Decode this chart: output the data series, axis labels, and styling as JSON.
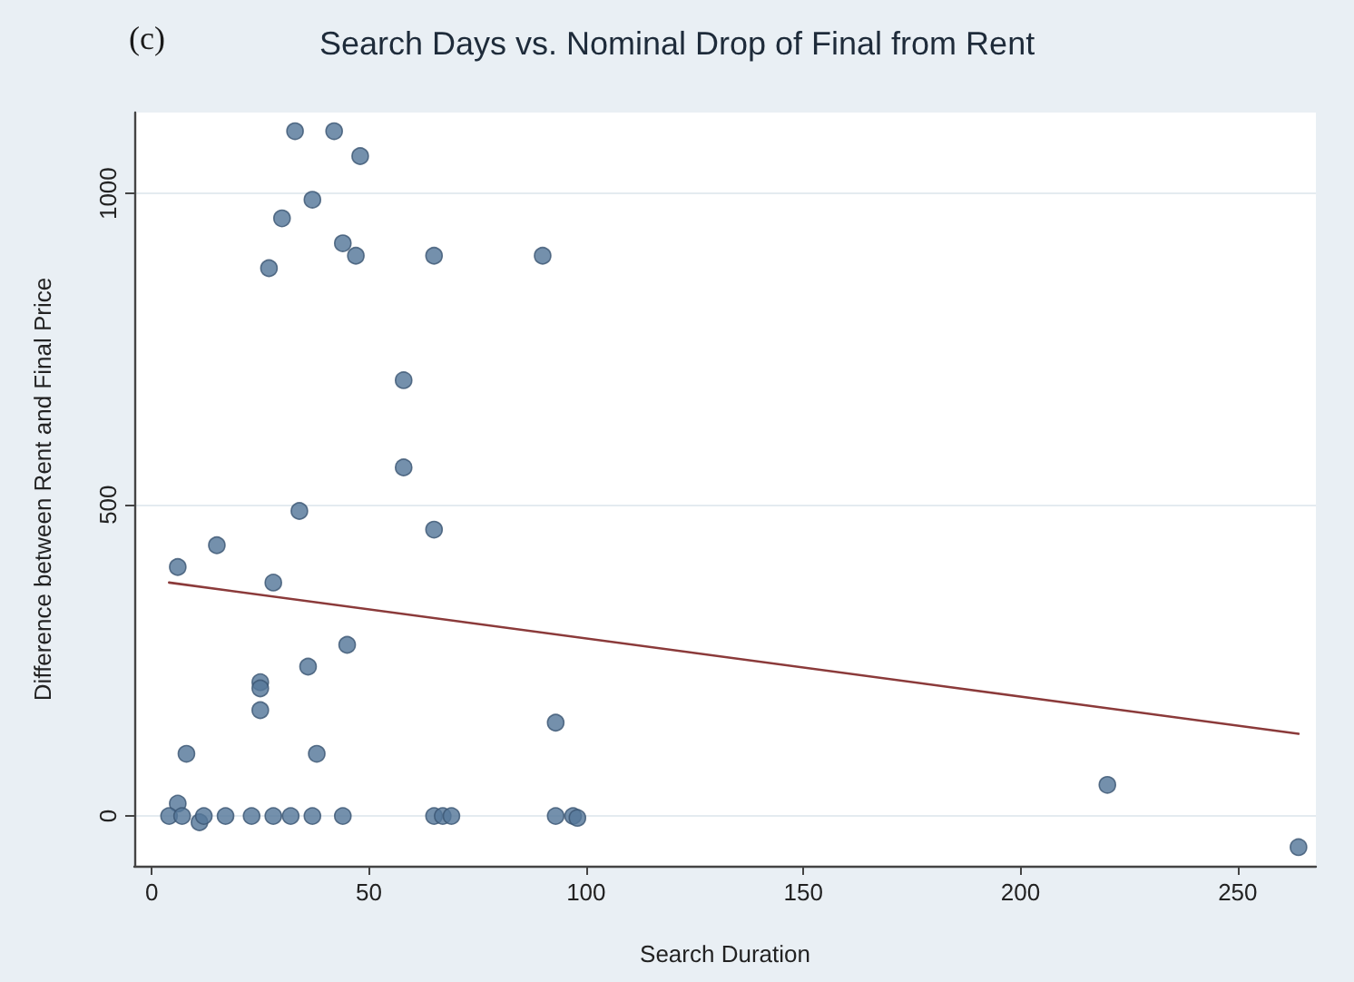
{
  "chart_data": {
    "type": "scatter",
    "title": "Search Days vs. Nominal Drop of Final from Rent",
    "xlabel": "Search Duration",
    "ylabel": "Difference between Rent and Final Price",
    "annotations": [
      "(c)"
    ],
    "xlim": [
      -4,
      268
    ],
    "ylim": [
      -80,
      1130
    ],
    "xticks": [
      0,
      50,
      100,
      150,
      200,
      250
    ],
    "yticks": [
      0,
      500,
      1000
    ],
    "grid": "y",
    "marker": "circle",
    "series": [
      {
        "type": "scatter",
        "color": "#56779a",
        "x": [
          33,
          42,
          48,
          37,
          30,
          44,
          47,
          65,
          90,
          27,
          58,
          58,
          34,
          65,
          6,
          15,
          28,
          45,
          36,
          25,
          25,
          25,
          8,
          38,
          93,
          6,
          220,
          264,
          4,
          7,
          11,
          12,
          17,
          23,
          28,
          32,
          37,
          44,
          65,
          67,
          69,
          93,
          97,
          98
        ],
        "values": [
          1100,
          1100,
          1060,
          990,
          960,
          920,
          900,
          900,
          900,
          880,
          700,
          560,
          490,
          460,
          400,
          435,
          375,
          275,
          240,
          215,
          205,
          170,
          100,
          100,
          150,
          20,
          50,
          -50,
          0,
          0,
          -10,
          0,
          0,
          0,
          0,
          0,
          0,
          0,
          0,
          0,
          0,
          0,
          0,
          -3
        ]
      },
      {
        "type": "line",
        "color": "#8b3a3a",
        "marker": "none",
        "x": [
          4,
          264
        ],
        "values": [
          375,
          132
        ]
      }
    ]
  }
}
